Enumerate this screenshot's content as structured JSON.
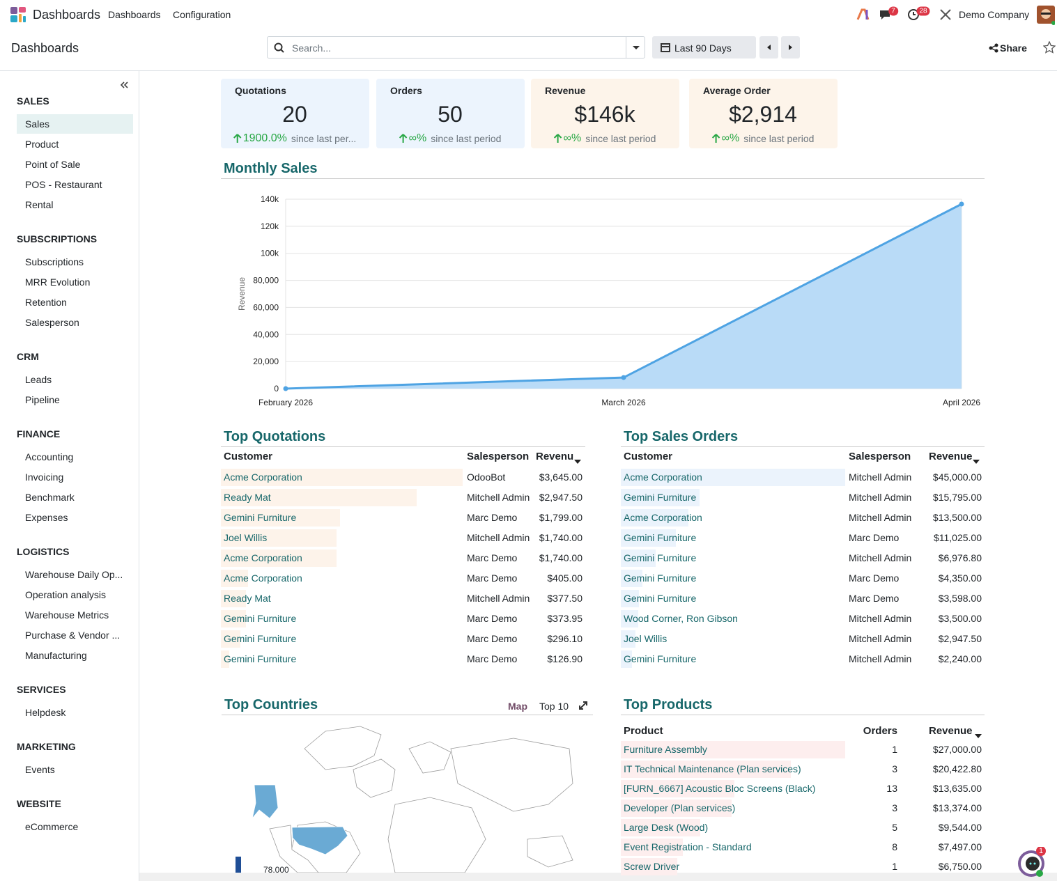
{
  "navbar": {
    "app": "Dashboards",
    "menu": [
      "Dashboards",
      "Configuration"
    ],
    "messages_badge": "7",
    "activities_badge": "28",
    "company": "Demo Company"
  },
  "control": {
    "breadcrumb": "Dashboards",
    "search_placeholder": "Search...",
    "period": "Last 90 Days",
    "share": "Share"
  },
  "sidebar": {
    "groups": [
      {
        "title": "SALES",
        "items": [
          "Sales",
          "Product",
          "Point of Sale",
          "POS - Restaurant",
          "Rental"
        ]
      },
      {
        "title": "SUBSCRIPTIONS",
        "items": [
          "Subscriptions",
          "MRR Evolution",
          "Retention",
          "Salesperson"
        ]
      },
      {
        "title": "CRM",
        "items": [
          "Leads",
          "Pipeline"
        ]
      },
      {
        "title": "FINANCE",
        "items": [
          "Accounting",
          "Invoicing",
          "Benchmark",
          "Expenses"
        ]
      },
      {
        "title": "LOGISTICS",
        "items": [
          "Warehouse Daily Op...",
          "Operation analysis",
          "Warehouse Metrics",
          "Purchase & Vendor ...",
          "Manufacturing"
        ]
      },
      {
        "title": "SERVICES",
        "items": [
          "Helpdesk"
        ]
      },
      {
        "title": "MARKETING",
        "items": [
          "Events"
        ]
      },
      {
        "title": "WEBSITE",
        "items": [
          "eCommerce"
        ]
      }
    ]
  },
  "kpis": [
    {
      "label": "Quotations",
      "value": "20",
      "change": "1900.0%",
      "note": "since last per..."
    },
    {
      "label": "Orders",
      "value": "50",
      "change": "∞%",
      "note": "since last period"
    },
    {
      "label": "Revenue",
      "value": "$146k",
      "change": "∞%",
      "note": "since last period"
    },
    {
      "label": "Average Order",
      "value": "$2,914",
      "change": "∞%",
      "note": "since last period"
    }
  ],
  "chart_data": {
    "type": "line",
    "title": "Monthly Sales",
    "y_label": "Revenue",
    "categories": [
      "February 2026",
      "March 2026",
      "April 2026"
    ],
    "values": [
      0,
      8200,
      136400
    ],
    "color": "#4ea3e3",
    "area": true,
    "area_color": "#b9dbf7",
    "ylim": [
      0,
      140000
    ],
    "yticks": [
      0,
      {
        "value": 20000,
        "label": "20,000"
      },
      {
        "value": 40000,
        "label": "40,000"
      },
      {
        "value": 60000,
        "label": "60,000"
      },
      {
        "value": 80000,
        "label": "80,000"
      },
      {
        "value": 100000,
        "label": "100k"
      },
      {
        "value": 120000,
        "label": "120k"
      },
      {
        "value": 140000,
        "label": "140k"
      }
    ],
    "grid": true
  },
  "top_quotations": {
    "title": "Top Quotations",
    "columns": [
      "Customer",
      "Salesperson",
      "Revenu"
    ],
    "customers": [
      "Acme Corporation",
      "Ready Mat",
      "Gemini Furniture",
      "Joel Willis",
      "Acme Corporation",
      "Acme Corporation",
      "Ready Mat",
      "Gemini Furniture",
      "Gemini Furniture",
      "Gemini Furniture"
    ],
    "salespersons": [
      "OdooBot",
      "Mitchell Admin",
      "Marc Demo",
      "Mitchell Admin",
      "Marc Demo",
      "Marc Demo",
      "Mitchell Admin",
      "Marc Demo",
      "Marc Demo",
      "Marc Demo"
    ],
    "values": [
      3645,
      2947.5,
      1799,
      1740,
      1740,
      405,
      377.5,
      373.95,
      296.1,
      126.9
    ],
    "value_labels": [
      "$3,645.00",
      "$2,947.50",
      "$1,799.00",
      "$1,740.00",
      "$1,740.00",
      "$405.00",
      "$377.50",
      "$373.95",
      "$296.10",
      "$126.90"
    ],
    "color": "#fdf3ea"
  },
  "top_sales_orders": {
    "title": "Top Sales Orders",
    "columns": [
      "Customer",
      "Salesperson",
      "Revenue"
    ],
    "customers": [
      "Acme Corporation",
      "Gemini Furniture",
      "Acme Corporation",
      "Gemini Furniture",
      "Gemini Furniture",
      "Gemini Furniture",
      "Gemini Furniture",
      "Wood Corner, Ron Gibson",
      "Joel Willis",
      "Gemini Furniture"
    ],
    "salespersons": [
      "Mitchell Admin",
      "Mitchell Admin",
      "Mitchell Admin",
      "Marc Demo",
      "Mitchell Admin",
      "Marc Demo",
      "Marc Demo",
      "Mitchell Admin",
      "Mitchell Admin",
      "Mitchell Admin"
    ],
    "values": [
      45000,
      15795,
      13500,
      11025,
      6976.8,
      4350,
      3598,
      3500,
      2947.5,
      2240
    ],
    "value_labels": [
      "$45,000.00",
      "$15,795.00",
      "$13,500.00",
      "$11,025.00",
      "$6,976.80",
      "$4,350.00",
      "$3,598.00",
      "$3,500.00",
      "$2,947.50",
      "$2,240.00"
    ],
    "color": "#ebf3fc"
  },
  "top_countries": {
    "title": "Top Countries",
    "modes": [
      "Map",
      "Top 10"
    ],
    "legend_label": "78.000"
  },
  "top_products": {
    "title": "Top Products",
    "columns": [
      "Product",
      "Orders",
      "Revenue"
    ],
    "products": [
      "Furniture Assembly",
      "IT Technical Maintenance (Plan services)",
      "[FURN_6667] Acoustic Bloc Screens (Black)",
      "Developer (Plan services)",
      "Large Desk (Wood)",
      "Event Registration - Standard",
      "Screw Driver"
    ],
    "orders": [
      1,
      3,
      13,
      3,
      5,
      8,
      1
    ],
    "values": [
      27000,
      20422.8,
      13635,
      13374,
      9544,
      7497,
      6750
    ],
    "value_labels": [
      "$27,000.00",
      "$20,422.80",
      "$13,635.00",
      "$13,374.00",
      "$9,544.00",
      "$7,497.00",
      "$6,750.00"
    ],
    "color": "#fdeeee"
  },
  "chat_badge": "1"
}
